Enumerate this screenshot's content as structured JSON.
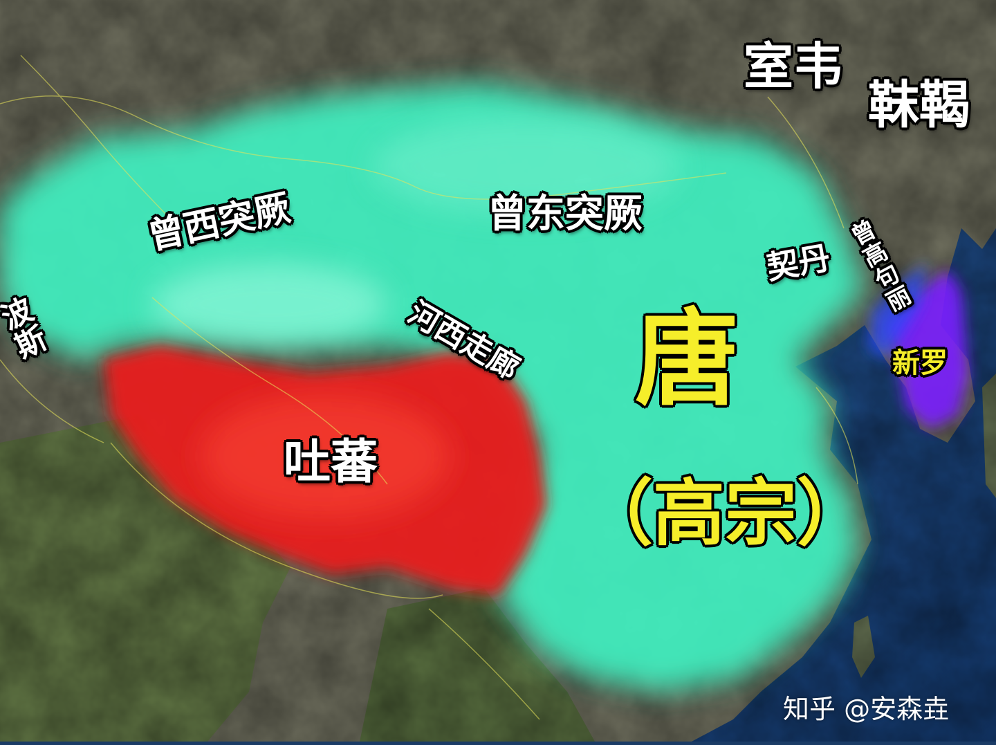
{
  "labels": {
    "shiwei": "室韦",
    "mohe": "靺鞨",
    "west_turks": "曾西突厥",
    "east_turks": "曾东突厥",
    "persia": "波斯",
    "khitan": "契丹",
    "goguryeo": "曾高句丽",
    "silla": "新罗",
    "hexi": "河西走廊",
    "tang": "唐",
    "gaozong": "（高宗）",
    "tubo": "吐蕃"
  },
  "watermark": "知乎 @安森垚",
  "colors": {
    "tang_and_turks": "#3ff0c0",
    "tubo": "#e81e1e",
    "silla_goguryeo": "#7a1fff",
    "ocean": "#1f4f8c"
  }
}
